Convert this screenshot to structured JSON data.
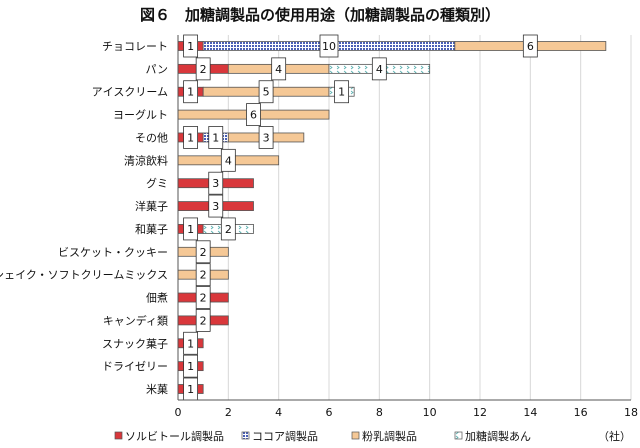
{
  "chart_data": {
    "type": "bar",
    "orientation": "horizontal",
    "stacked": true,
    "title": "図６　加糖調製品の使用用途（加糖調製品の種類別）",
    "xlabel": "（社）",
    "xlim": [
      0,
      18
    ],
    "xticks": [
      0,
      2,
      4,
      6,
      8,
      10,
      12,
      14,
      16,
      18
    ],
    "grid": true,
    "legend_position": "bottom",
    "categories": [
      "チョコレート",
      "パン",
      "アイスクリーム",
      "ヨーグルト",
      "その他",
      "清涼飲料",
      "グミ",
      "洋菓子",
      "和菓子",
      "ビスケット・クッキー",
      "シェイク・ソフトクリームミックス",
      "佃煮",
      "キャンディ類",
      "スナック菓子",
      "ドライゼリー",
      "米菓"
    ],
    "series": [
      {
        "name": "ソルビトール調製品",
        "color": "#d9373b",
        "pattern": "solid",
        "values": [
          1,
          2,
          1,
          0,
          1,
          0,
          3,
          3,
          1,
          0,
          0,
          2,
          2,
          1,
          1,
          1
        ]
      },
      {
        "name": "ココア調製品",
        "color": "#4a5fb5",
        "pattern": "grid",
        "values": [
          10,
          0,
          0,
          0,
          1,
          0,
          0,
          0,
          0,
          0,
          0,
          0,
          0,
          0,
          0,
          0
        ]
      },
      {
        "name": "粉乳調製品",
        "color": "#f5c896",
        "pattern": "solid",
        "values": [
          6,
          4,
          5,
          6,
          3,
          4,
          0,
          0,
          0,
          2,
          2,
          0,
          0,
          0,
          0,
          0
        ]
      },
      {
        "name": "加糖調製あん",
        "color": "#5ab0b0",
        "pattern": "dots",
        "values": [
          0,
          4,
          1,
          0,
          0,
          0,
          0,
          0,
          2,
          0,
          0,
          0,
          0,
          0,
          0,
          0
        ]
      }
    ]
  }
}
